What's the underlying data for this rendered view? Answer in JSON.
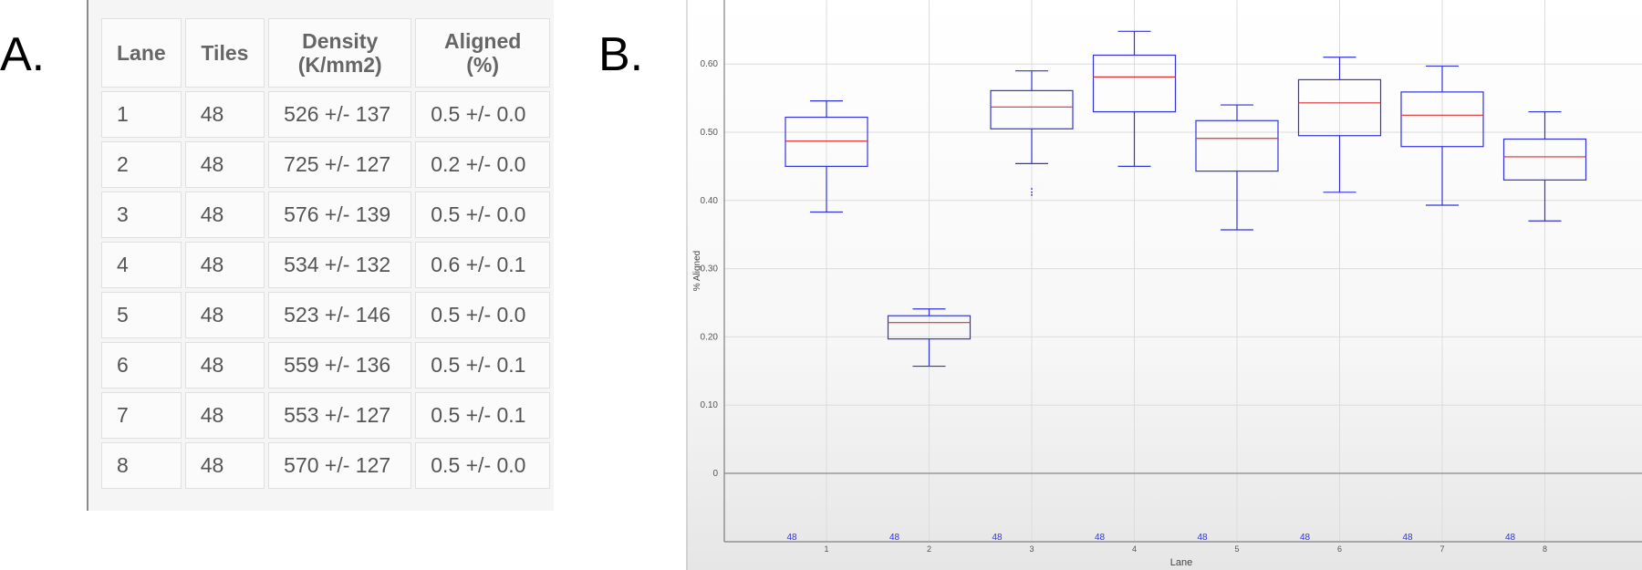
{
  "panels": {
    "a_label": "A.",
    "b_label": "B."
  },
  "table": {
    "headers": [
      {
        "line1": "Lane",
        "line2": ""
      },
      {
        "line1": "Tiles",
        "line2": ""
      },
      {
        "line1": "Density",
        "line2": "(K/mm2)"
      },
      {
        "line1": "Aligned",
        "line2": "(%)"
      }
    ],
    "rows": [
      [
        "1",
        "48",
        "526 +/- 137",
        "0.5 +/- 0.0"
      ],
      [
        "2",
        "48",
        "725 +/- 127",
        "0.2 +/- 0.0"
      ],
      [
        "3",
        "48",
        "576 +/- 139",
        "0.5 +/- 0.0"
      ],
      [
        "4",
        "48",
        "534 +/- 132",
        "0.6 +/- 0.1"
      ],
      [
        "5",
        "48",
        "523 +/- 146",
        "0.5 +/- 0.0"
      ],
      [
        "6",
        "48",
        "559 +/- 136",
        "0.5 +/- 0.1"
      ],
      [
        "7",
        "48",
        "553 +/- 127",
        "0.5 +/- 0.1"
      ],
      [
        "8",
        "48",
        "570 +/- 127",
        "0.5 +/- 0.0"
      ]
    ]
  },
  "chart_data": {
    "type": "box",
    "xlabel": "Lane",
    "ylabel": "% Aligned",
    "ylim": [
      -0.1,
      0.7
    ],
    "yticks": [
      0,
      0.1,
      0.2,
      0.3,
      0.4,
      0.5,
      0.6
    ],
    "ytick_labels": [
      "0",
      "0.10",
      "0.20",
      "0.30",
      "0.40",
      "0.50",
      "0.60"
    ],
    "grid": true,
    "zero_line": true,
    "categories": [
      "1",
      "2",
      "3",
      "4",
      "5",
      "6",
      "7",
      "8"
    ],
    "counts": [
      "48",
      "48",
      "48",
      "48",
      "48",
      "48",
      "48",
      "48"
    ],
    "boxes": [
      {
        "lane": "1",
        "min": 0.383,
        "q1": 0.45,
        "median": 0.487,
        "q3": 0.522,
        "max": 0.546,
        "outliers": []
      },
      {
        "lane": "2",
        "min": 0.157,
        "q1": 0.197,
        "median": 0.221,
        "q3": 0.231,
        "max": 0.241,
        "outliers": []
      },
      {
        "lane": "3",
        "min": 0.454,
        "q1": 0.505,
        "median": 0.537,
        "q3": 0.561,
        "max": 0.59,
        "outliers": [
          0.417,
          0.412,
          0.408
        ]
      },
      {
        "lane": "4",
        "min": 0.45,
        "q1": 0.53,
        "median": 0.581,
        "q3": 0.613,
        "max": 0.648,
        "outliers": []
      },
      {
        "lane": "5",
        "min": 0.357,
        "q1": 0.443,
        "median": 0.491,
        "q3": 0.517,
        "max": 0.54,
        "outliers": []
      },
      {
        "lane": "6",
        "min": 0.412,
        "q1": 0.495,
        "median": 0.543,
        "q3": 0.577,
        "max": 0.61,
        "outliers": []
      },
      {
        "lane": "7",
        "min": 0.393,
        "q1": 0.479,
        "median": 0.525,
        "q3": 0.559,
        "max": 0.597,
        "outliers": []
      },
      {
        "lane": "8",
        "min": 0.37,
        "q1": 0.43,
        "median": 0.464,
        "q3": 0.49,
        "max": 0.53,
        "outliers": []
      }
    ],
    "colors": {
      "box": "#3333dd",
      "median": "#e03030",
      "count_text": "#3333dd",
      "axis_text": "#555555",
      "grid": "#dcdcdc"
    }
  }
}
